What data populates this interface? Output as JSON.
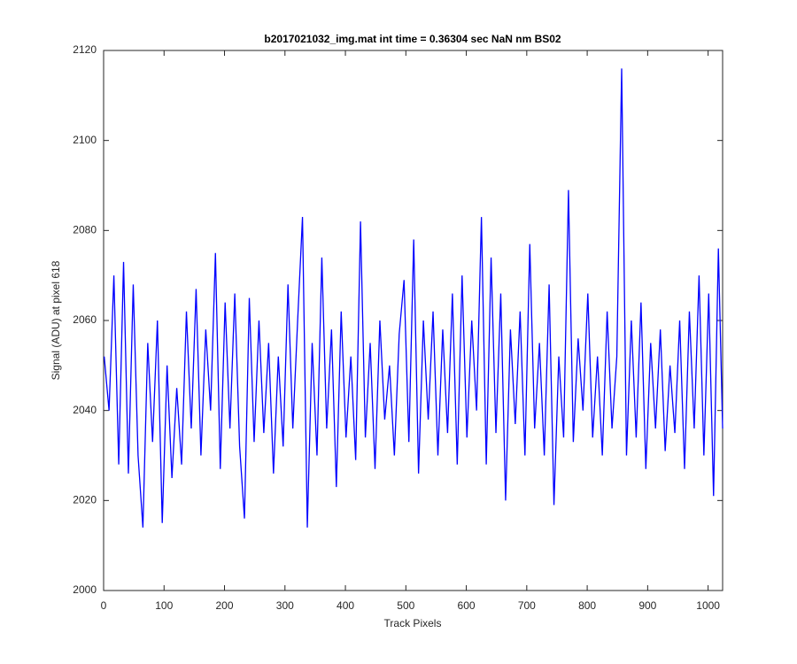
{
  "chart_data": {
    "type": "line",
    "title": "b2017021032_img.mat int time = 0.36304 sec  NaN nm BS02",
    "xlabel": "Track Pixels",
    "ylabel": "Signal (ADU) at pixel 618",
    "x": [
      1,
      9,
      17,
      25,
      33,
      41,
      49,
      57,
      65,
      73,
      81,
      89,
      97,
      105,
      113,
      121,
      129,
      137,
      145,
      153,
      161,
      169,
      177,
      185,
      193,
      201,
      209,
      217,
      225,
      233,
      241,
      249,
      257,
      265,
      273,
      281,
      289,
      297,
      305,
      313,
      321,
      329,
      337,
      345,
      353,
      361,
      369,
      377,
      385,
      393,
      401,
      409,
      417,
      425,
      433,
      441,
      449,
      457,
      465,
      473,
      481,
      489,
      497,
      505,
      513,
      521,
      529,
      537,
      545,
      553,
      561,
      569,
      577,
      585,
      593,
      601,
      609,
      617,
      625,
      633,
      641,
      649,
      657,
      665,
      673,
      681,
      689,
      697,
      705,
      713,
      721,
      729,
      737,
      745,
      753,
      761,
      769,
      777,
      785,
      793,
      801,
      809,
      817,
      825,
      833,
      841,
      849,
      857,
      865,
      873,
      881,
      889,
      897,
      905,
      913,
      921,
      929,
      937,
      945,
      953,
      961,
      969,
      977,
      985,
      993,
      1001,
      1009,
      1017,
      1024
    ],
    "series": [
      {
        "color": "#0000ff",
        "values": [
          2052,
          2040,
          2070,
          2028,
          2073,
          2026,
          2068,
          2030,
          2014,
          2055,
          2033,
          2060,
          2015,
          2050,
          2025,
          2045,
          2028,
          2062,
          2036,
          2067,
          2030,
          2058,
          2040,
          2075,
          2027,
          2064,
          2036,
          2066,
          2032,
          2016,
          2065,
          2033,
          2060,
          2035,
          2055,
          2026,
          2052,
          2032,
          2068,
          2036,
          2060,
          2083,
          2014,
          2055,
          2030,
          2074,
          2036,
          2058,
          2023,
          2062,
          2034,
          2052,
          2029,
          2082,
          2034,
          2055,
          2027,
          2060,
          2038,
          2050,
          2030,
          2057,
          2069,
          2033,
          2078,
          2026,
          2060,
          2038,
          2062,
          2030,
          2058,
          2035,
          2066,
          2028,
          2070,
          2034,
          2060,
          2040,
          2083,
          2028,
          2074,
          2035,
          2066,
          2020,
          2058,
          2037,
          2062,
          2030,
          2077,
          2036,
          2055,
          2030,
          2068,
          2019,
          2052,
          2034,
          2089,
          2033,
          2056,
          2040,
          2066,
          2034,
          2052,
          2030,
          2062,
          2036,
          2052,
          2116,
          2030,
          2060,
          2034,
          2064,
          2027,
          2055,
          2036,
          2058,
          2031,
          2050,
          2035,
          2060,
          2027,
          2062,
          2036,
          2070,
          2030,
          2066,
          2021,
          2076,
          2036
        ]
      }
    ],
    "xlim": [
      0,
      1024
    ],
    "ylim": [
      2000,
      2120
    ],
    "xticks": [
      0,
      100,
      200,
      300,
      400,
      500,
      600,
      700,
      800,
      900,
      1000
    ],
    "yticks": [
      2000,
      2020,
      2040,
      2060,
      2080,
      2100,
      2120
    ],
    "grid": false
  }
}
